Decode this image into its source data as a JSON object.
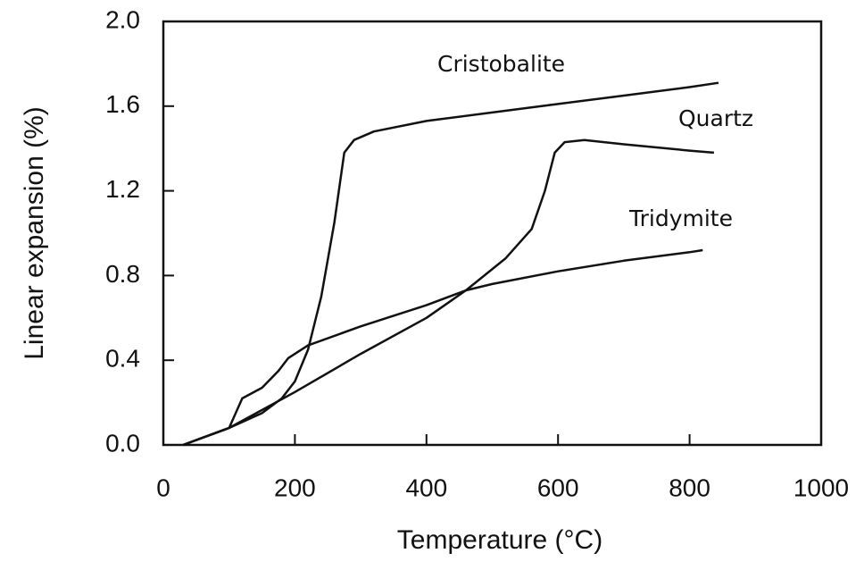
{
  "chart_data": {
    "type": "line",
    "x_label": "Temperature (°C)",
    "y_label": "Linear expansion (%)",
    "xlim": [
      0,
      1000
    ],
    "xticks": [
      0,
      200,
      400,
      600,
      800,
      1000
    ],
    "ylim": [
      0,
      2
    ],
    "yticks": [
      {
        "value": 0,
        "label": "0.0"
      },
      0.4,
      0.8,
      1.2,
      1.6,
      {
        "value": 2,
        "label": "2.0"
      }
    ],
    "series": [
      {
        "name": "Cristobalite",
        "color": "#111111",
        "x": [
          30,
          100,
          150,
          180,
          200,
          220,
          240,
          260,
          275,
          290,
          320,
          400,
          500,
          600,
          700,
          800,
          844
        ],
        "values": [
          0,
          0.08,
          0.15,
          0.22,
          0.3,
          0.45,
          0.7,
          1.05,
          1.38,
          1.44,
          1.48,
          1.53,
          1.57,
          1.61,
          1.65,
          1.69,
          1.71
        ]
      },
      {
        "name": "Quartz",
        "color": "#111111",
        "x": [
          30,
          100,
          200,
          300,
          400,
          460,
          520,
          560,
          580,
          595,
          610,
          640,
          700,
          800,
          837
        ],
        "values": [
          0,
          0.08,
          0.25,
          0.43,
          0.6,
          0.73,
          0.88,
          1.02,
          1.2,
          1.38,
          1.43,
          1.44,
          1.42,
          1.39,
          1.38
        ]
      },
      {
        "name": "Tridymite",
        "color": "#111111",
        "x": [
          30,
          100,
          120,
          150,
          175,
          190,
          220,
          300,
          400,
          460,
          500,
          600,
          700,
          800,
          820
        ],
        "values": [
          0,
          0.08,
          0.22,
          0.27,
          0.35,
          0.41,
          0.47,
          0.56,
          0.66,
          0.73,
          0.76,
          0.82,
          0.87,
          0.91,
          0.92
        ]
      }
    ]
  }
}
